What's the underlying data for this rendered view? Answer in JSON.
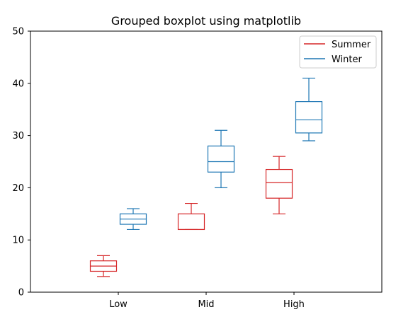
{
  "chart_data": {
    "type": "boxplot",
    "title": "Grouped boxplot using matplotlib",
    "xlabel": "",
    "ylabel": "",
    "categories": [
      "Low",
      "Mid",
      "High"
    ],
    "ylim": [
      0,
      50
    ],
    "yticks": [
      "0",
      "10",
      "20",
      "30",
      "40",
      "50"
    ],
    "grid": false,
    "legend_position": "top-right",
    "series": [
      {
        "name": "Summer",
        "color": "#d62728",
        "boxes": [
          {
            "whislo": 3,
            "q1": 4,
            "med": 5,
            "q3": 6,
            "whishi": 7
          },
          {
            "whislo": 12,
            "q1": 12,
            "med": 12,
            "q3": 15,
            "whishi": 17
          },
          {
            "whislo": 15,
            "q1": 18,
            "med": 21,
            "q3": 23.5,
            "whishi": 26
          }
        ]
      },
      {
        "name": "Winter",
        "color": "#1f77b4",
        "boxes": [
          {
            "whislo": 12,
            "q1": 13,
            "med": 14,
            "q3": 15,
            "whishi": 16
          },
          {
            "whislo": 20,
            "q1": 23,
            "med": 25,
            "q3": 28,
            "whishi": 31
          },
          {
            "whislo": 29,
            "q1": 30.5,
            "med": 33,
            "q3": 36.5,
            "whishi": 41
          }
        ]
      }
    ]
  }
}
